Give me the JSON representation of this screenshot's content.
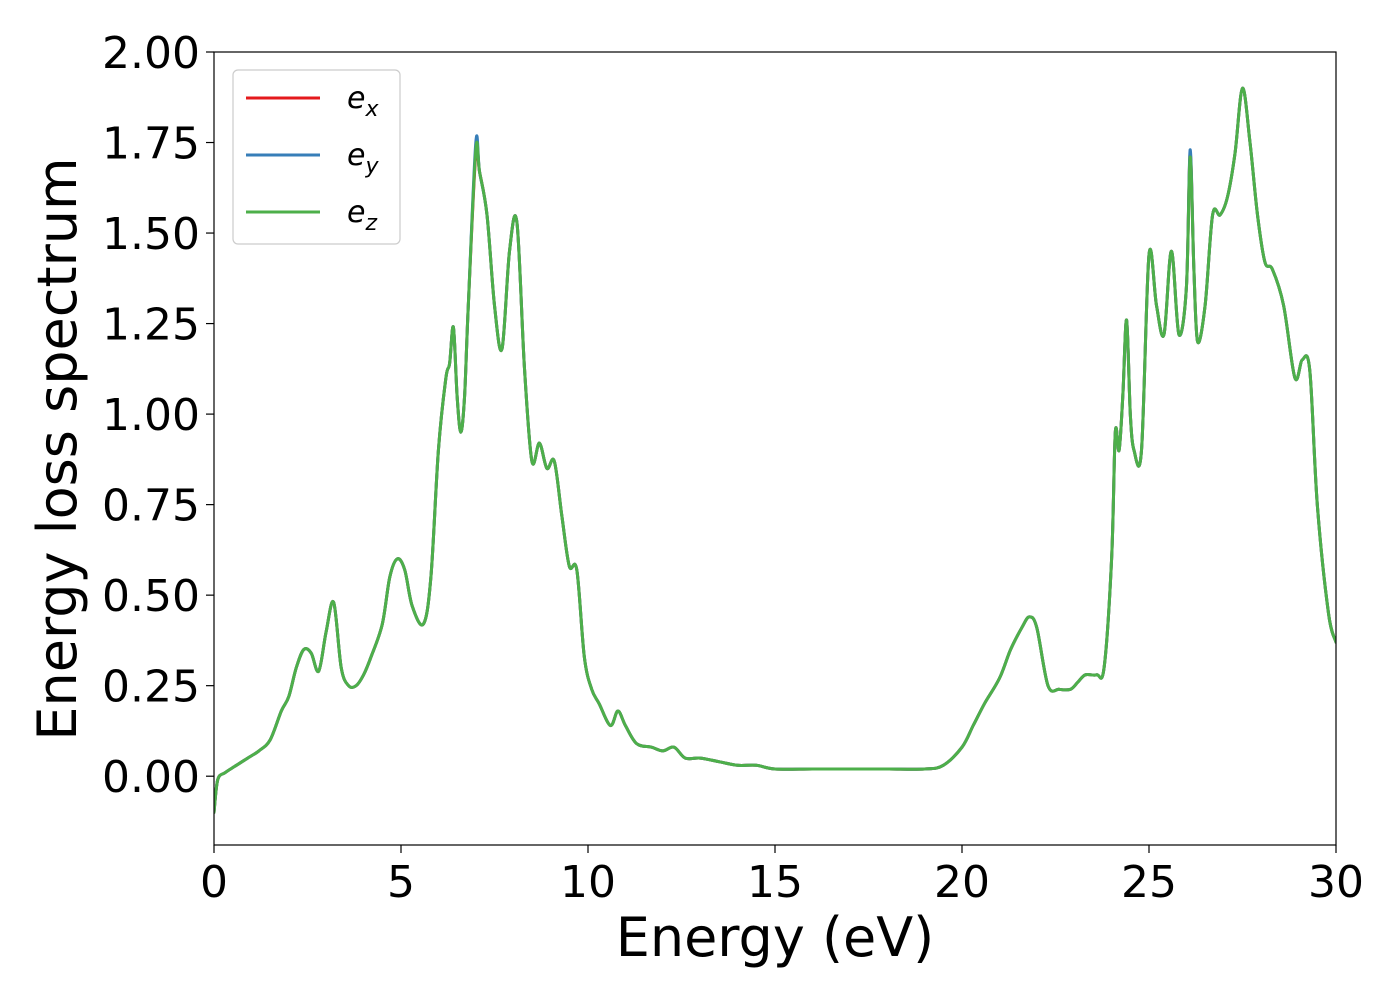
{
  "chart_data": {
    "type": "line",
    "title": "",
    "xlabel": "Energy (eV)",
    "ylabel": "Energy loss spectrum",
    "xlim": [
      0,
      30
    ],
    "ylim": [
      -0.19,
      2.0
    ],
    "x_ticks": [
      "0",
      "5",
      "10",
      "15",
      "20",
      "25",
      "30"
    ],
    "y_ticks": [
      "0.00",
      "0.25",
      "0.50",
      "0.75",
      "1.00",
      "1.25",
      "1.50",
      "1.75",
      "2.00"
    ],
    "grid": false,
    "legend_position": "top-left",
    "series": [
      {
        "name": "e_x",
        "label_base": "e",
        "label_sub": "x",
        "color": "#e41a1c",
        "x": [
          0,
          0.1,
          0.3,
          0.6,
          0.9,
          1.2,
          1.5,
          1.8,
          2.0,
          2.2,
          2.4,
          2.6,
          2.8,
          3.0,
          3.2,
          3.4,
          3.6,
          3.8,
          4.0,
          4.2,
          4.5,
          4.7,
          4.9,
          5.1,
          5.3,
          5.6,
          5.8,
          6.0,
          6.2,
          6.3,
          6.4,
          6.5,
          6.6,
          6.7,
          6.8,
          7.0,
          7.1,
          7.3,
          7.5,
          7.7,
          7.9,
          8.1,
          8.3,
          8.5,
          8.7,
          8.9,
          9.1,
          9.3,
          9.5,
          9.7,
          9.9,
          10.1,
          10.3,
          10.6,
          10.8,
          11.0,
          11.3,
          11.7,
          12.0,
          12.3,
          12.6,
          13.0,
          13.5,
          14.0,
          14.5,
          15.0,
          16.0,
          17.0,
          18.0,
          19.0,
          19.5,
          20.0,
          20.3,
          20.6,
          21.0,
          21.3,
          21.6,
          21.8,
          22.0,
          22.3,
          22.6,
          22.9,
          23.1,
          23.3,
          23.6,
          23.8,
          24.0,
          24.1,
          24.2,
          24.3,
          24.4,
          24.5,
          24.6,
          24.8,
          25.0,
          25.2,
          25.4,
          25.6,
          25.8,
          26.0,
          26.1,
          26.2,
          26.3,
          26.5,
          26.7,
          26.9,
          27.1,
          27.3,
          27.5,
          27.7,
          27.9,
          28.1,
          28.3,
          28.6,
          28.9,
          29.1,
          29.3,
          29.5,
          29.8,
          30.0
        ],
        "y": [
          -0.1,
          -0.01,
          0.01,
          0.03,
          0.05,
          0.07,
          0.1,
          0.18,
          0.22,
          0.3,
          0.35,
          0.34,
          0.29,
          0.4,
          0.48,
          0.3,
          0.25,
          0.25,
          0.28,
          0.33,
          0.42,
          0.55,
          0.6,
          0.57,
          0.47,
          0.42,
          0.55,
          0.9,
          1.1,
          1.14,
          1.24,
          1.05,
          0.95,
          1.05,
          1.3,
          1.72,
          1.67,
          1.55,
          1.3,
          1.18,
          1.45,
          1.53,
          1.13,
          0.87,
          0.92,
          0.85,
          0.87,
          0.72,
          0.58,
          0.57,
          0.33,
          0.24,
          0.2,
          0.14,
          0.18,
          0.14,
          0.09,
          0.08,
          0.07,
          0.08,
          0.05,
          0.05,
          0.04,
          0.03,
          0.03,
          0.02,
          0.02,
          0.02,
          0.02,
          0.02,
          0.03,
          0.08,
          0.14,
          0.2,
          0.27,
          0.35,
          0.41,
          0.44,
          0.41,
          0.25,
          0.24,
          0.24,
          0.26,
          0.28,
          0.28,
          0.3,
          0.6,
          0.95,
          0.9,
          1.05,
          1.26,
          1.0,
          0.9,
          0.9,
          1.44,
          1.3,
          1.22,
          1.45,
          1.22,
          1.35,
          1.72,
          1.4,
          1.2,
          1.3,
          1.55,
          1.55,
          1.6,
          1.72,
          1.9,
          1.75,
          1.55,
          1.42,
          1.4,
          1.3,
          1.1,
          1.15,
          1.12,
          0.75,
          0.45,
          0.37
        ],
        "x_extra": [
          29.9
        ],
        "y_extra": [
          0.3
        ]
      },
      {
        "name": "e_y",
        "label_base": "e",
        "label_sub": "y",
        "color": "#377eb8",
        "x": [
          0,
          0.1,
          0.3,
          0.6,
          0.9,
          1.2,
          1.5,
          1.8,
          2.0,
          2.2,
          2.4,
          2.6,
          2.8,
          3.0,
          3.2,
          3.4,
          3.6,
          3.8,
          4.0,
          4.2,
          4.5,
          4.7,
          4.9,
          5.1,
          5.3,
          5.6,
          5.8,
          6.0,
          6.2,
          6.3,
          6.4,
          6.5,
          6.6,
          6.7,
          6.8,
          7.0,
          7.1,
          7.3,
          7.5,
          7.7,
          7.9,
          8.1,
          8.3,
          8.5,
          8.7,
          8.9,
          9.1,
          9.3,
          9.5,
          9.7,
          9.9,
          10.1,
          10.3,
          10.6,
          10.8,
          11.0,
          11.3,
          11.7,
          12.0,
          12.3,
          12.6,
          13.0,
          13.5,
          14.0,
          14.5,
          15.0,
          16.0,
          17.0,
          18.0,
          19.0,
          19.5,
          20.0,
          20.3,
          20.6,
          21.0,
          21.3,
          21.6,
          21.8,
          22.0,
          22.3,
          22.6,
          22.9,
          23.1,
          23.3,
          23.6,
          23.8,
          24.0,
          24.1,
          24.2,
          24.3,
          24.4,
          24.5,
          24.6,
          24.8,
          25.0,
          25.2,
          25.4,
          25.6,
          25.8,
          26.0,
          26.1,
          26.2,
          26.3,
          26.5,
          26.7,
          26.9,
          27.1,
          27.3,
          27.5,
          27.7,
          27.9,
          28.1,
          28.3,
          28.6,
          28.9,
          29.1,
          29.3,
          29.5,
          29.8,
          30.0
        ],
        "y": [
          -0.1,
          -0.01,
          0.01,
          0.03,
          0.05,
          0.07,
          0.1,
          0.18,
          0.22,
          0.3,
          0.35,
          0.34,
          0.29,
          0.4,
          0.48,
          0.3,
          0.25,
          0.25,
          0.28,
          0.33,
          0.42,
          0.55,
          0.6,
          0.57,
          0.47,
          0.42,
          0.55,
          0.9,
          1.1,
          1.14,
          1.24,
          1.05,
          0.95,
          1.05,
          1.3,
          1.75,
          1.67,
          1.55,
          1.3,
          1.18,
          1.45,
          1.53,
          1.13,
          0.87,
          0.92,
          0.85,
          0.87,
          0.72,
          0.58,
          0.57,
          0.33,
          0.24,
          0.2,
          0.14,
          0.18,
          0.14,
          0.09,
          0.08,
          0.07,
          0.08,
          0.05,
          0.05,
          0.04,
          0.03,
          0.03,
          0.02,
          0.02,
          0.02,
          0.02,
          0.02,
          0.03,
          0.08,
          0.14,
          0.2,
          0.27,
          0.35,
          0.41,
          0.44,
          0.41,
          0.25,
          0.24,
          0.24,
          0.26,
          0.28,
          0.28,
          0.3,
          0.6,
          0.95,
          0.9,
          1.05,
          1.26,
          1.0,
          0.9,
          0.9,
          1.44,
          1.3,
          1.22,
          1.45,
          1.22,
          1.35,
          1.73,
          1.4,
          1.2,
          1.3,
          1.55,
          1.55,
          1.6,
          1.72,
          1.9,
          1.75,
          1.55,
          1.42,
          1.4,
          1.3,
          1.1,
          1.15,
          1.12,
          0.75,
          0.45,
          0.37
        ]
      },
      {
        "name": "e_z",
        "label_base": "e",
        "label_sub": "z",
        "color": "#4daf4a",
        "x": [
          0,
          0.1,
          0.3,
          0.6,
          0.9,
          1.2,
          1.5,
          1.8,
          2.0,
          2.2,
          2.4,
          2.6,
          2.8,
          3.0,
          3.2,
          3.4,
          3.6,
          3.8,
          4.0,
          4.2,
          4.5,
          4.7,
          4.9,
          5.1,
          5.3,
          5.6,
          5.8,
          6.0,
          6.2,
          6.3,
          6.4,
          6.5,
          6.6,
          6.7,
          6.8,
          7.0,
          7.1,
          7.3,
          7.5,
          7.7,
          7.9,
          8.1,
          8.3,
          8.5,
          8.7,
          8.9,
          9.1,
          9.3,
          9.5,
          9.7,
          9.9,
          10.1,
          10.3,
          10.6,
          10.8,
          11.0,
          11.3,
          11.7,
          12.0,
          12.3,
          12.6,
          13.0,
          13.5,
          14.0,
          14.5,
          15.0,
          16.0,
          17.0,
          18.0,
          19.0,
          19.5,
          20.0,
          20.3,
          20.6,
          21.0,
          21.3,
          21.6,
          21.8,
          22.0,
          22.3,
          22.6,
          22.9,
          23.1,
          23.3,
          23.6,
          23.8,
          24.0,
          24.1,
          24.2,
          24.3,
          24.4,
          24.5,
          24.6,
          24.8,
          25.0,
          25.2,
          25.4,
          25.6,
          25.8,
          26.0,
          26.1,
          26.2,
          26.3,
          26.5,
          26.7,
          26.9,
          27.1,
          27.3,
          27.5,
          27.7,
          27.9,
          28.1,
          28.3,
          28.6,
          28.9,
          29.1,
          29.3,
          29.5,
          29.8,
          30.0
        ],
        "y": [
          -0.1,
          -0.01,
          0.01,
          0.03,
          0.05,
          0.07,
          0.1,
          0.18,
          0.22,
          0.3,
          0.35,
          0.34,
          0.29,
          0.4,
          0.48,
          0.3,
          0.25,
          0.25,
          0.28,
          0.33,
          0.42,
          0.55,
          0.6,
          0.57,
          0.47,
          0.42,
          0.55,
          0.9,
          1.1,
          1.14,
          1.24,
          1.05,
          0.95,
          1.05,
          1.3,
          1.73,
          1.67,
          1.55,
          1.3,
          1.18,
          1.45,
          1.53,
          1.13,
          0.87,
          0.92,
          0.85,
          0.87,
          0.72,
          0.58,
          0.57,
          0.33,
          0.24,
          0.2,
          0.14,
          0.18,
          0.14,
          0.09,
          0.08,
          0.07,
          0.08,
          0.05,
          0.05,
          0.04,
          0.03,
          0.03,
          0.02,
          0.02,
          0.02,
          0.02,
          0.02,
          0.03,
          0.08,
          0.14,
          0.2,
          0.27,
          0.35,
          0.41,
          0.44,
          0.41,
          0.25,
          0.24,
          0.24,
          0.26,
          0.28,
          0.28,
          0.3,
          0.6,
          0.95,
          0.9,
          1.05,
          1.26,
          1.0,
          0.9,
          0.9,
          1.44,
          1.3,
          1.22,
          1.45,
          1.22,
          1.35,
          1.71,
          1.4,
          1.2,
          1.3,
          1.55,
          1.55,
          1.6,
          1.72,
          1.9,
          1.75,
          1.55,
          1.42,
          1.4,
          1.3,
          1.1,
          1.15,
          1.12,
          0.75,
          0.45,
          0.37
        ]
      }
    ]
  }
}
